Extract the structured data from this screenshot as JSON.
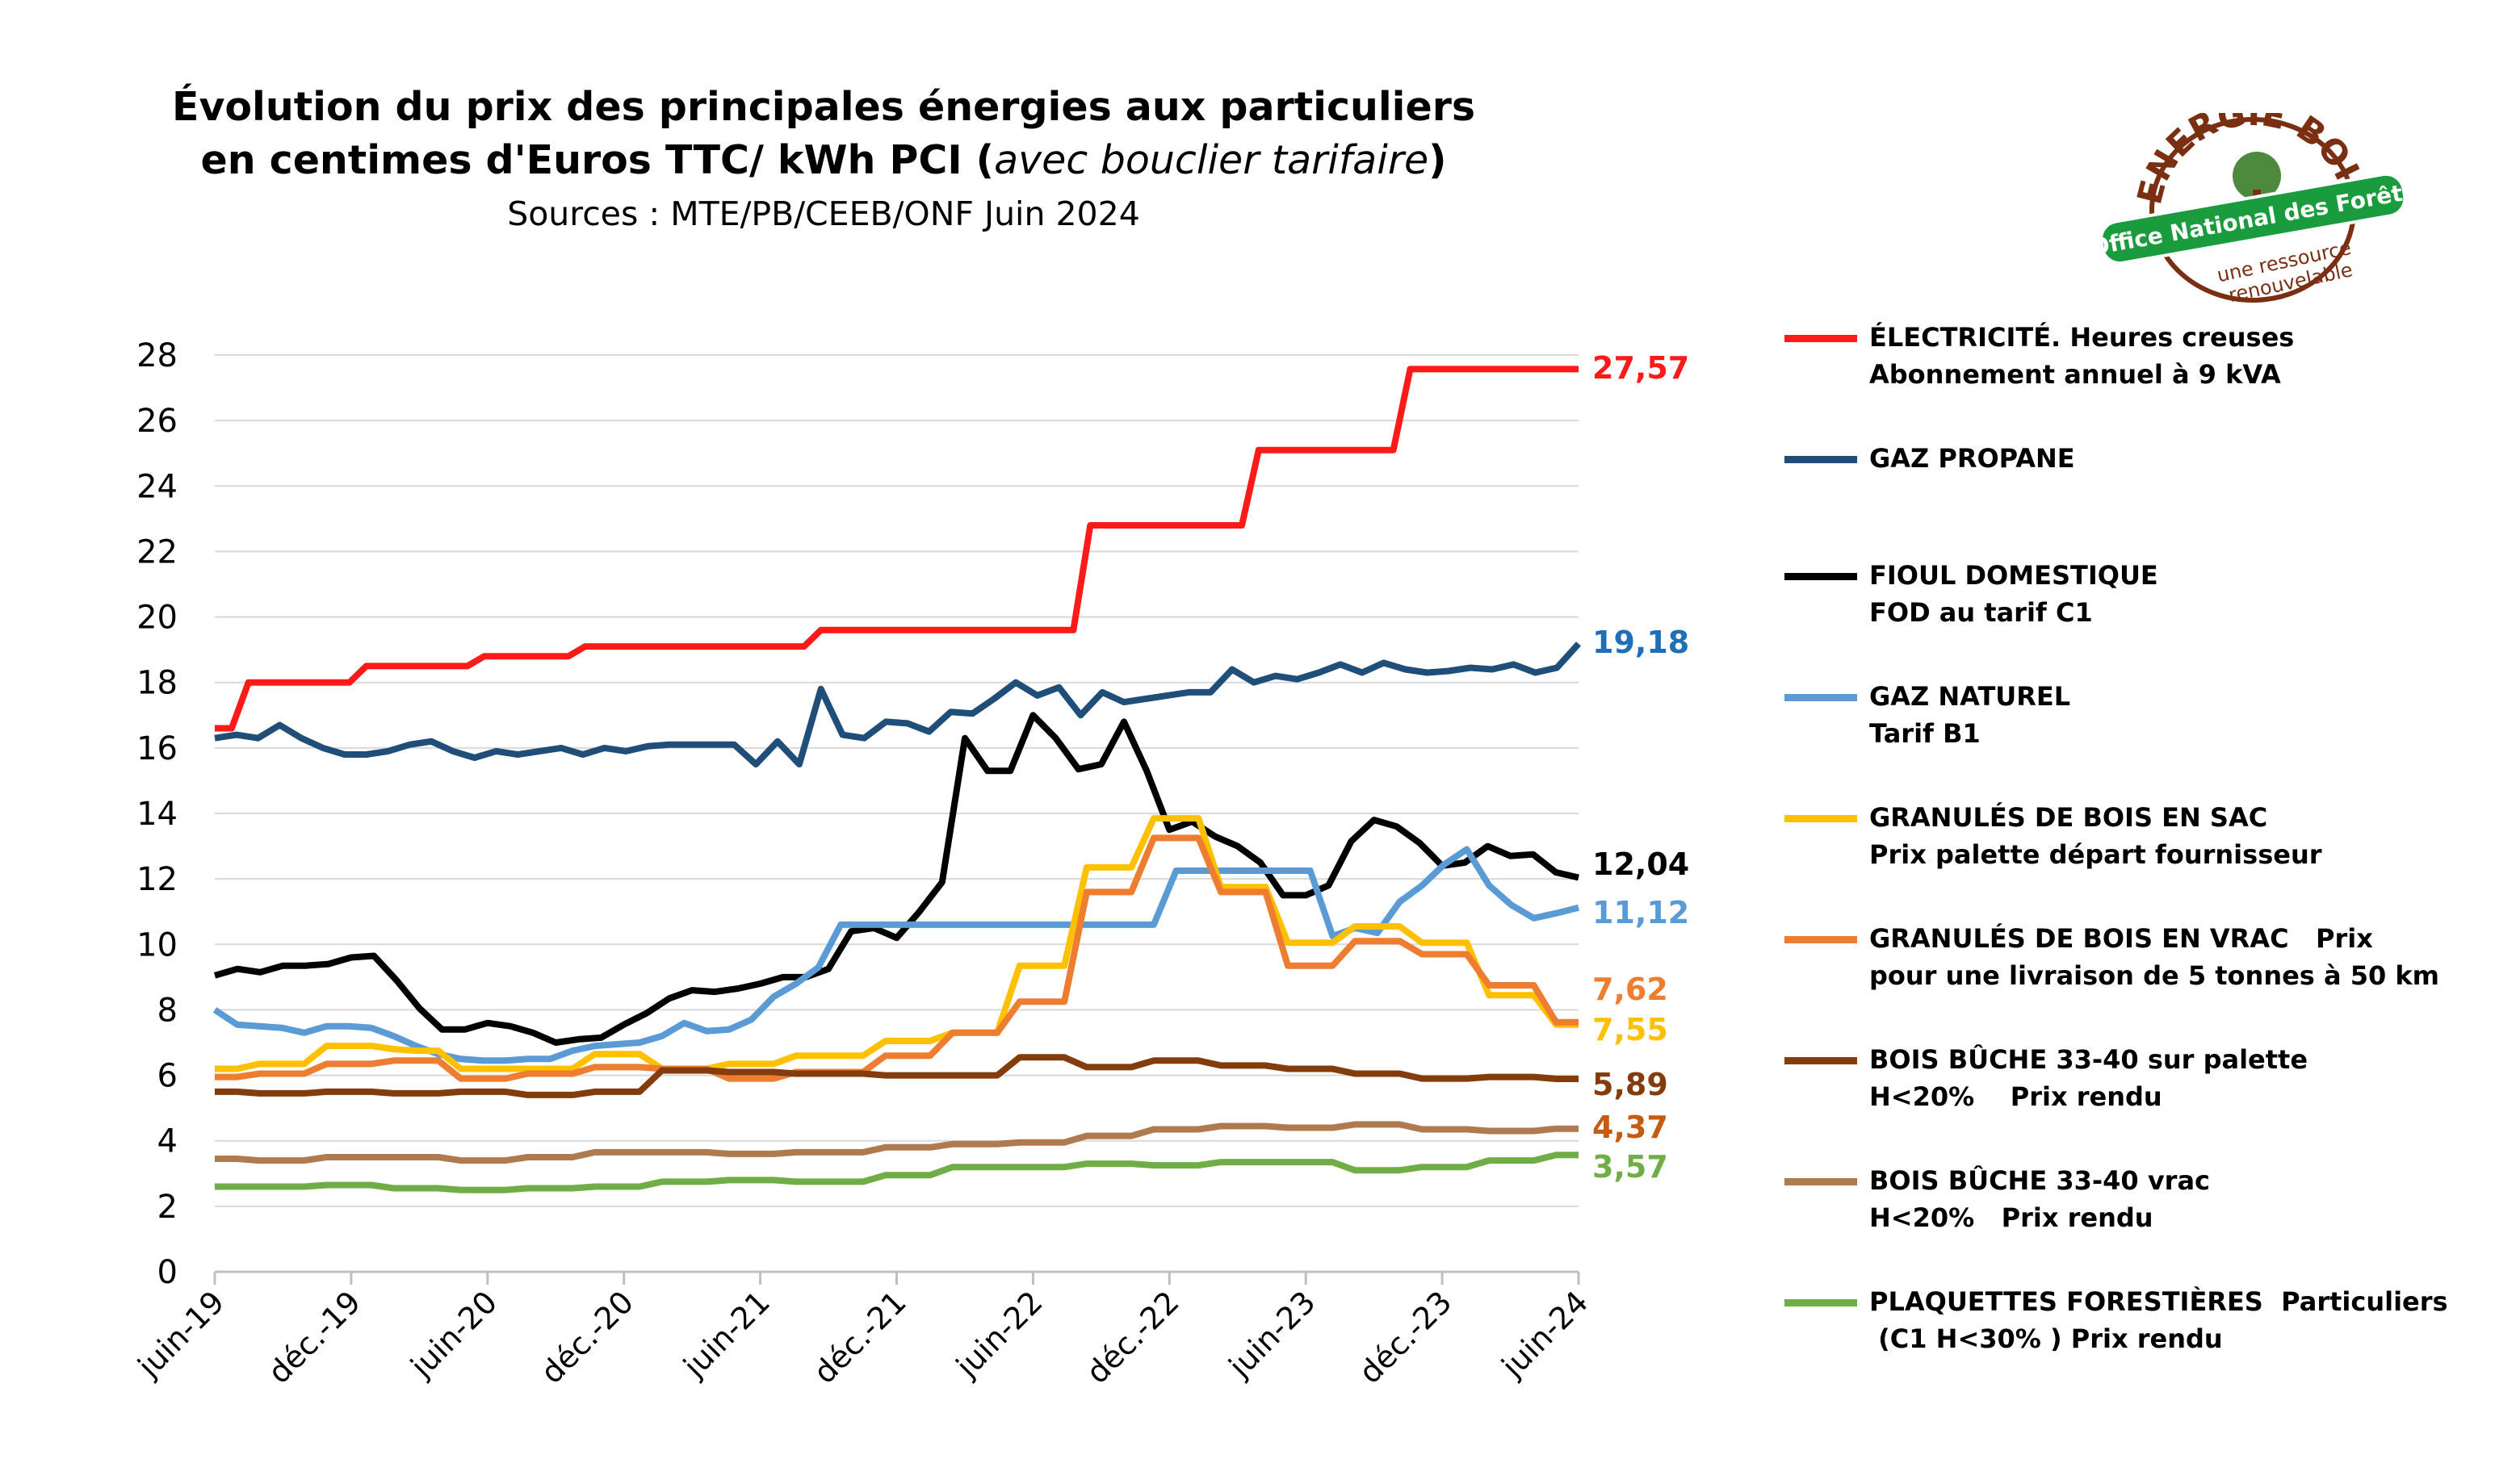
{
  "title": {
    "line1": "Évolution du prix des principales énergies aux particuliers",
    "line2_main": "en centimes d'Euros TTC/ kWh PCI (",
    "line2_italic": "avec bouclier tarifaire",
    "line2_end": ")",
    "sources": "Sources : MTE/PB/CEEB/ONF Juin 2024"
  },
  "logo": {
    "top_text": "ENERGIE BOIS",
    "banner_text": "Office National des Forêts",
    "bottom_line1": "une ressource",
    "bottom_line2": "renouvelable",
    "colors": {
      "brown": "#7a2e12",
      "green": "#1a9c3e",
      "white": "#ffffff"
    }
  },
  "chart_data": {
    "type": "line",
    "ylim": [
      0,
      28
    ],
    "yticks": [
      0,
      2,
      4,
      6,
      8,
      10,
      12,
      14,
      16,
      18,
      20,
      22,
      24,
      26,
      28
    ],
    "xticks": [
      "juin-19",
      "déc.-19",
      "juin-20",
      "déc.-20",
      "juin-21",
      "déc.-21",
      "juin-22",
      "déc.-22",
      "juin-23",
      "déc.-23",
      "juin-24"
    ],
    "x_points_per_tick": 6,
    "grid": true,
    "legend_position": "right",
    "series": [
      {
        "key": "elec",
        "legend": [
          "ÉLECTRICITÉ. Heures creuses",
          "Abonnement annuel à 9 kVA"
        ],
        "color": "#ff1a1a",
        "end_label": "27,57",
        "values": [
          16.6,
          16.6,
          18,
          18,
          18,
          18,
          18,
          18,
          18,
          18.5,
          18.5,
          18.5,
          18.5,
          18.5,
          18.5,
          18.5,
          18.8,
          18.8,
          18.8,
          18.8,
          18.8,
          18.8,
          19.1,
          19.1,
          19.1,
          19.1,
          19.1,
          19.1,
          19.1,
          19.1,
          19.1,
          19.1,
          19.1,
          19.1,
          19.1,
          19.1,
          19.6,
          19.6,
          19.6,
          19.6,
          19.6,
          19.6,
          19.6,
          19.6,
          19.6,
          19.6,
          19.6,
          19.6,
          19.6,
          19.6,
          19.6,
          19.6,
          22.8,
          22.8,
          22.8,
          22.8,
          22.8,
          22.8,
          22.8,
          22.8,
          22.8,
          22.8,
          25.1,
          25.1,
          25.1,
          25.1,
          25.1,
          25.1,
          25.1,
          25.1,
          25.1,
          27.57,
          27.57,
          27.57,
          27.57,
          27.57,
          27.57,
          27.57,
          27.57,
          27.57,
          27.57,
          27.57
        ]
      },
      {
        "key": "propane",
        "legend": [
          "GAZ PROPANE"
        ],
        "color": "#1f4e79",
        "end_label": "19,18",
        "end_label_color": "#1f6fb8",
        "values": [
          16.3,
          16.4,
          16.3,
          16.7,
          16.3,
          16,
          15.8,
          15.8,
          15.9,
          16.1,
          16.2,
          15.9,
          15.7,
          15.9,
          15.8,
          15.9,
          16,
          15.8,
          16,
          15.9,
          16.05,
          16.1,
          16.1,
          16.1,
          16.1,
          15.5,
          16.2,
          15.5,
          17.8,
          16.4,
          16.3,
          16.8,
          16.75,
          16.5,
          17.1,
          17.05,
          17.5,
          18,
          17.6,
          17.85,
          17,
          17.7,
          17.4,
          17.5,
          17.6,
          17.7,
          17.7,
          18.4,
          18,
          18.2,
          18.1,
          18.3,
          18.55,
          18.3,
          18.6,
          18.4,
          18.3,
          18.35,
          18.45,
          18.4,
          18.55,
          18.3,
          18.45,
          19.18
        ]
      },
      {
        "key": "fioul",
        "legend": [
          "FIOUL DOMESTIQUE",
          "FOD au tarif C1"
        ],
        "color": "#000000",
        "end_label": "12,04",
        "values": [
          9.05,
          9.25,
          9.15,
          9.35,
          9.35,
          9.4,
          9.6,
          9.65,
          8.9,
          8.05,
          7.4,
          7.4,
          7.6,
          7.5,
          7.3,
          7,
          7.1,
          7.15,
          7.55,
          7.9,
          8.35,
          8.6,
          8.55,
          8.65,
          8.8,
          9,
          9,
          9.25,
          10.4,
          10.5,
          10.2,
          11,
          11.9,
          16.3,
          15.3,
          15.3,
          17,
          16.3,
          15.35,
          15.5,
          16.8,
          15.3,
          13.5,
          13.75,
          13.3,
          13,
          12.5,
          11.5,
          11.5,
          11.8,
          13.15,
          13.8,
          13.6,
          13.1,
          12.4,
          12.5,
          13,
          12.7,
          12.75,
          12.2,
          12.04
        ]
      },
      {
        "key": "gaznat",
        "legend": [
          "GAZ NATUREL",
          "Tarif B1"
        ],
        "color": "#5b9bd5",
        "end_label": "11,12",
        "end_label_color": "#5b9bd5",
        "values": [
          8,
          7.55,
          7.5,
          7.45,
          7.3,
          7.5,
          7.5,
          7.45,
          7.2,
          6.9,
          6.65,
          6.5,
          6.45,
          6.45,
          6.5,
          6.5,
          6.75,
          6.9,
          6.95,
          7,
          7.2,
          7.6,
          7.35,
          7.4,
          7.7,
          8.4,
          8.8,
          9.3,
          10.6,
          10.6,
          10.6,
          10.6,
          10.6,
          10.6,
          10.6,
          10.6,
          10.6,
          10.6,
          10.6,
          10.6,
          10.6,
          10.6,
          10.6,
          12.25,
          12.25,
          12.25,
          12.25,
          12.25,
          12.25,
          12.25,
          10.25,
          10.5,
          10.35,
          11.3,
          11.8,
          12.45,
          12.9,
          11.8,
          11.2,
          10.8,
          10.95,
          11.12
        ]
      },
      {
        "key": "granules_sac",
        "legend": [
          "GRANULÉS DE BOIS EN SAC",
          "Prix palette départ fournisseur"
        ],
        "color": "#ffc000",
        "end_label": "7,55",
        "end_label_color": "#ffc000",
        "values": [
          6.2,
          6.2,
          6.35,
          6.35,
          6.35,
          6.9,
          6.9,
          6.9,
          6.8,
          6.75,
          6.75,
          6.2,
          6.2,
          6.2,
          6.2,
          6.2,
          6.2,
          6.65,
          6.65,
          6.65,
          6.2,
          6.2,
          6.2,
          6.35,
          6.35,
          6.35,
          6.6,
          6.6,
          6.6,
          6.6,
          7.05,
          7.05,
          7.05,
          7.3,
          7.3,
          7.3,
          9.35,
          9.35,
          9.35,
          12.35,
          12.35,
          12.35,
          13.85,
          13.85,
          13.85,
          11.75,
          11.75,
          11.75,
          10.05,
          10.05,
          10.05,
          10.55,
          10.55,
          10.55,
          10.05,
          10.05,
          10.05,
          8.45,
          8.45,
          8.45,
          7.55,
          7.55
        ]
      },
      {
        "key": "granules_vrac",
        "legend": [
          "GRANULÉS DE BOIS EN VRAC   Prix",
          "pour une livraison de 5 tonnes à 50 km"
        ],
        "color": "#ed7d31",
        "end_label": "7,62",
        "end_label_color": "#ed7d31",
        "values": [
          5.95,
          5.95,
          6.05,
          6.05,
          6.05,
          6.35,
          6.35,
          6.35,
          6.45,
          6.45,
          6.45,
          5.9,
          5.9,
          5.9,
          6.05,
          6.05,
          6.05,
          6.25,
          6.25,
          6.25,
          6.2,
          6.2,
          6.2,
          5.9,
          5.9,
          5.9,
          6.1,
          6.1,
          6.1,
          6.1,
          6.6,
          6.6,
          6.6,
          7.3,
          7.3,
          7.3,
          8.25,
          8.25,
          8.25,
          11.6,
          11.6,
          11.6,
          13.25,
          13.25,
          13.25,
          11.6,
          11.6,
          11.6,
          9.35,
          9.35,
          9.35,
          10.1,
          10.1,
          10.1,
          9.7,
          9.7,
          9.7,
          8.75,
          8.75,
          8.75,
          7.62,
          7.62
        ]
      },
      {
        "key": "buche_palette",
        "legend": [
          "BOIS BÛCHE 33-40 sur palette",
          "H<20%    Prix rendu"
        ],
        "color": "#843c0c",
        "end_label": "5,89",
        "end_label_color": "#843c0c",
        "values": [
          5.5,
          5.5,
          5.45,
          5.45,
          5.45,
          5.5,
          5.5,
          5.5,
          5.45,
          5.45,
          5.45,
          5.5,
          5.5,
          5.5,
          5.4,
          5.4,
          5.4,
          5.5,
          5.5,
          5.5,
          6.15,
          6.15,
          6.15,
          6.1,
          6.1,
          6.1,
          6.05,
          6.05,
          6.05,
          6.05,
          6,
          6,
          6,
          6,
          6,
          6,
          6.55,
          6.55,
          6.55,
          6.25,
          6.25,
          6.25,
          6.45,
          6.45,
          6.45,
          6.3,
          6.3,
          6.3,
          6.2,
          6.2,
          6.2,
          6.05,
          6.05,
          6.05,
          5.9,
          5.9,
          5.9,
          5.95,
          5.95,
          5.95,
          5.89,
          5.89
        ]
      },
      {
        "key": "buche_vrac",
        "legend": [
          "BOIS BÛCHE 33-40 vrac",
          "H<20%   Prix rendu"
        ],
        "color": "#b07a4f",
        "end_label": "4,37",
        "end_label_color": "#c55a11",
        "values": [
          3.45,
          3.45,
          3.4,
          3.4,
          3.4,
          3.5,
          3.5,
          3.5,
          3.5,
          3.5,
          3.5,
          3.4,
          3.4,
          3.4,
          3.5,
          3.5,
          3.5,
          3.65,
          3.65,
          3.65,
          3.65,
          3.65,
          3.65,
          3.6,
          3.6,
          3.6,
          3.65,
          3.65,
          3.65,
          3.65,
          3.8,
          3.8,
          3.8,
          3.9,
          3.9,
          3.9,
          3.95,
          3.95,
          3.95,
          4.15,
          4.15,
          4.15,
          4.35,
          4.35,
          4.35,
          4.45,
          4.45,
          4.45,
          4.4,
          4.4,
          4.4,
          4.5,
          4.5,
          4.5,
          4.35,
          4.35,
          4.35,
          4.3,
          4.3,
          4.3,
          4.37,
          4.37
        ]
      },
      {
        "key": "plaquettes",
        "legend": [
          "PLAQUETTES FORESTIÈRES  Particuliers",
          " (C1 H<30% ) Prix rendu"
        ],
        "color": "#70ad47",
        "end_label": "3,57",
        "end_label_color": "#70ad47",
        "values": [
          2.6,
          2.6,
          2.6,
          2.6,
          2.6,
          2.65,
          2.65,
          2.65,
          2.55,
          2.55,
          2.55,
          2.5,
          2.5,
          2.5,
          2.55,
          2.55,
          2.55,
          2.6,
          2.6,
          2.6,
          2.75,
          2.75,
          2.75,
          2.8,
          2.8,
          2.8,
          2.75,
          2.75,
          2.75,
          2.75,
          2.95,
          2.95,
          2.95,
          3.2,
          3.2,
          3.2,
          3.2,
          3.2,
          3.2,
          3.3,
          3.3,
          3.3,
          3.25,
          3.25,
          3.25,
          3.35,
          3.35,
          3.35,
          3.35,
          3.35,
          3.35,
          3.1,
          3.1,
          3.1,
          3.2,
          3.2,
          3.2,
          3.4,
          3.4,
          3.4,
          3.57,
          3.57
        ]
      }
    ]
  }
}
